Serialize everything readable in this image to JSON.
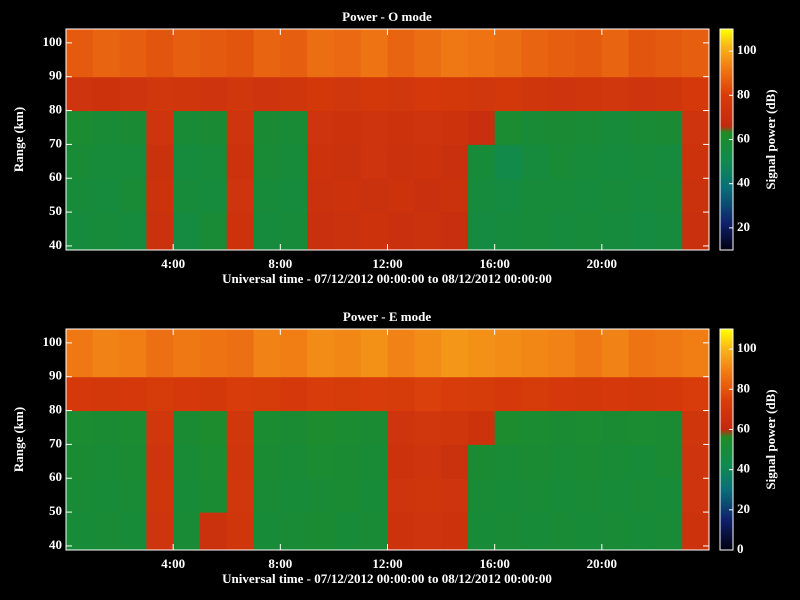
{
  "chart_data": [
    {
      "type": "heatmap",
      "title": "Power - O mode",
      "xlabel": "Universal time - 07/12/2012 00:00:00 to 08/12/2012 00:00:00",
      "ylabel": "Range (km)",
      "colorbar_label": "Signal power (dB)",
      "x_bins": [
        0,
        1,
        2,
        3,
        4,
        5,
        6,
        7,
        8,
        9,
        10,
        11,
        12,
        13,
        14,
        15,
        16,
        17,
        18,
        19,
        20,
        21,
        22,
        23,
        24
      ],
      "y_bins": [
        38.8,
        50,
        60,
        70,
        80,
        90,
        104.1
      ],
      "values": [
        [
          56,
          57,
          56,
          72,
          55,
          58,
          73,
          56,
          57,
          71,
          72,
          73,
          71,
          72,
          70,
          55,
          56,
          57,
          56,
          57,
          56,
          55,
          56,
          71
        ],
        [
          57,
          56,
          58,
          73,
          57,
          56,
          74,
          57,
          56,
          72,
          73,
          72,
          73,
          71,
          72,
          56,
          55,
          57,
          57,
          56,
          57,
          56,
          57,
          72
        ],
        [
          58,
          57,
          57,
          72,
          56,
          57,
          73,
          58,
          57,
          73,
          72,
          74,
          72,
          73,
          71,
          57,
          52,
          56,
          58,
          57,
          56,
          57,
          56,
          73
        ],
        [
          60,
          58,
          59,
          74,
          58,
          59,
          74,
          59,
          58,
          74,
          73,
          74,
          73,
          74,
          73,
          70,
          60,
          58,
          59,
          58,
          57,
          58,
          59,
          74
        ],
        [
          74,
          73,
          74,
          76,
          75,
          74,
          76,
          74,
          75,
          77,
          76,
          77,
          76,
          78,
          77,
          76,
          77,
          75,
          74,
          75,
          76,
          74,
          75,
          78
        ],
        [
          86,
          88,
          87,
          85,
          87,
          86,
          85,
          88,
          87,
          90,
          89,
          91,
          88,
          90,
          92,
          91,
          90,
          88,
          87,
          86,
          88,
          85,
          86,
          87
        ]
      ],
      "xlim": [
        0,
        24
      ],
      "ylim": [
        38.8,
        104.1
      ],
      "xticks": [
        {
          "value": 4,
          "label": "4:00"
        },
        {
          "value": 8,
          "label": "8:00"
        },
        {
          "value": 12,
          "label": "12:00"
        },
        {
          "value": 16,
          "label": "16:00"
        },
        {
          "value": 20,
          "label": "20:00"
        }
      ],
      "yticks": [
        40,
        50,
        60,
        70,
        80,
        90,
        100
      ],
      "clim": [
        10,
        110
      ],
      "cticks": [
        20,
        40,
        60,
        80,
        100
      ],
      "colorscale": [
        [
          10,
          "#000010"
        ],
        [
          22,
          "#10206a"
        ],
        [
          38,
          "#0a6e78"
        ],
        [
          50,
          "#108a50"
        ],
        [
          63,
          "#1e8c28"
        ],
        [
          66,
          "#c02a10"
        ],
        [
          80,
          "#d83c0a"
        ],
        [
          92,
          "#f07814"
        ],
        [
          102,
          "#f8b41c"
        ],
        [
          110,
          "#ffff00"
        ]
      ]
    },
    {
      "type": "heatmap",
      "title": "Power - E mode",
      "xlabel": "Universal time - 07/12/2012 00:00:00 to 08/12/2012 00:00:00",
      "ylabel": "Range (km)",
      "colorbar_label": "Signal power (dB)",
      "x_bins": [
        0,
        1,
        2,
        3,
        4,
        5,
        6,
        7,
        8,
        9,
        10,
        11,
        12,
        13,
        14,
        15,
        16,
        17,
        18,
        19,
        20,
        21,
        22,
        23,
        24
      ],
      "y_bins": [
        38.8,
        50,
        60,
        70,
        80,
        90,
        104.1
      ],
      "values": [
        [
          50,
          51,
          50,
          68,
          51,
          66,
          69,
          50,
          51,
          52,
          50,
          51,
          67,
          68,
          67,
          50,
          51,
          50,
          51,
          50,
          51,
          50,
          51,
          67
        ],
        [
          51,
          50,
          51,
          69,
          50,
          52,
          70,
          51,
          50,
          51,
          52,
          50,
          68,
          69,
          68,
          51,
          50,
          51,
          50,
          51,
          50,
          51,
          50,
          68
        ],
        [
          52,
          51,
          52,
          68,
          51,
          53,
          69,
          52,
          51,
          53,
          52,
          51,
          67,
          68,
          66,
          52,
          51,
          52,
          51,
          52,
          51,
          50,
          52,
          68
        ],
        [
          53,
          52,
          53,
          70,
          52,
          54,
          70,
          53,
          52,
          54,
          53,
          52,
          68,
          70,
          69,
          67,
          54,
          53,
          52,
          53,
          52,
          53,
          52,
          69
        ],
        [
          72,
          71,
          72,
          73,
          72,
          71,
          74,
          73,
          72,
          74,
          73,
          74,
          73,
          75,
          74,
          73,
          72,
          73,
          72,
          71,
          72,
          71,
          72,
          74
        ],
        [
          88,
          90,
          89,
          86,
          88,
          87,
          86,
          90,
          89,
          92,
          91,
          93,
          90,
          92,
          94,
          93,
          92,
          91,
          90,
          88,
          90,
          87,
          88,
          89
        ]
      ],
      "xlim": [
        0,
        24
      ],
      "ylim": [
        38.8,
        104.1
      ],
      "xticks": [
        {
          "value": 4,
          "label": "4:00"
        },
        {
          "value": 8,
          "label": "8:00"
        },
        {
          "value": 12,
          "label": "12:00"
        },
        {
          "value": 16,
          "label": "16:00"
        },
        {
          "value": 20,
          "label": "20:00"
        }
      ],
      "yticks": [
        40,
        50,
        60,
        70,
        80,
        90,
        100
      ],
      "clim": [
        0,
        110
      ],
      "cticks": [
        0,
        20,
        40,
        60,
        80,
        100
      ],
      "colorscale": [
        [
          0,
          "#000010"
        ],
        [
          15,
          "#10206a"
        ],
        [
          30,
          "#0a6e78"
        ],
        [
          42,
          "#108a50"
        ],
        [
          56,
          "#1e8c28"
        ],
        [
          60,
          "#c02a10"
        ],
        [
          74,
          "#d83c0a"
        ],
        [
          88,
          "#f07814"
        ],
        [
          100,
          "#f8b41c"
        ],
        [
          110,
          "#ffff00"
        ]
      ]
    }
  ]
}
